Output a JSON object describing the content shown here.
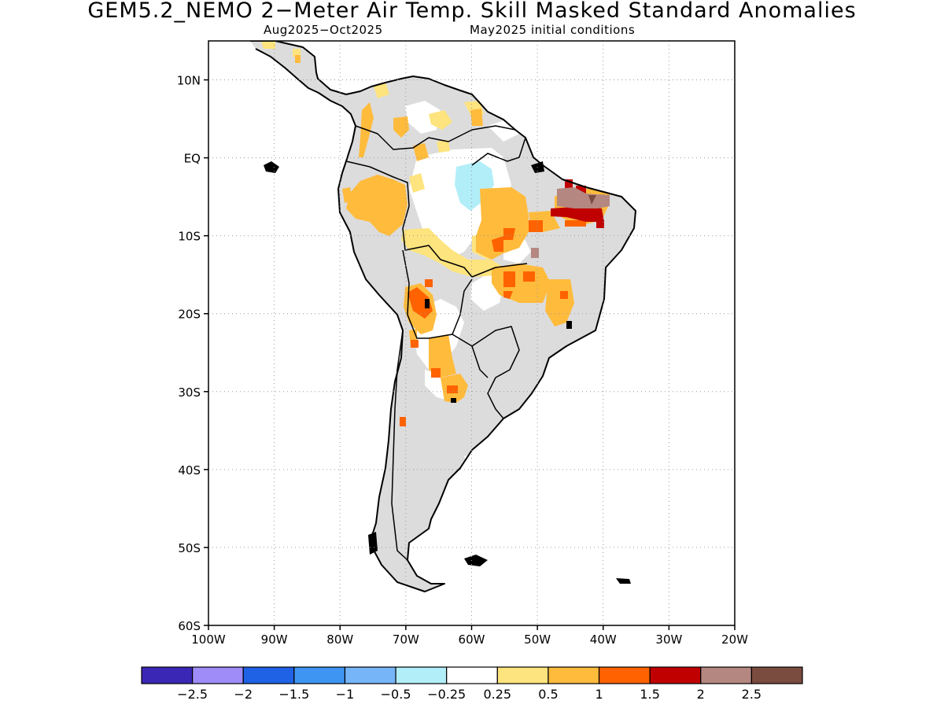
{
  "title": "GEM5.2_NEMO 2−Meter Air Temp. Skill Masked Standard Anomalies",
  "subtitle_left": "Aug2025−Oct2025",
  "subtitle_right": "May2025 initial conditions",
  "map": {
    "lon_range": [
      -100,
      -20
    ],
    "lat_range": [
      -60,
      15
    ],
    "lon_ticks": [
      {
        "value": -100,
        "label": "100W"
      },
      {
        "value": -90,
        "label": "90W"
      },
      {
        "value": -80,
        "label": "80W"
      },
      {
        "value": -70,
        "label": "70W"
      },
      {
        "value": -60,
        "label": "60W"
      },
      {
        "value": -50,
        "label": "50W"
      },
      {
        "value": -40,
        "label": "40W"
      },
      {
        "value": -30,
        "label": "30W"
      },
      {
        "value": -20,
        "label": "20W"
      }
    ],
    "lat_ticks": [
      {
        "value": 10,
        "label": "10N"
      },
      {
        "value": 0,
        "label": "EQ"
      },
      {
        "value": -10,
        "label": "10S"
      },
      {
        "value": -20,
        "label": "20S"
      },
      {
        "value": -30,
        "label": "30S"
      },
      {
        "value": -40,
        "label": "40S"
      },
      {
        "value": -50,
        "label": "50S"
      },
      {
        "value": -60,
        "label": "60S"
      }
    ],
    "grid": true
  },
  "colorbar": {
    "colors": [
      "#3b27b5",
      "#9f8cf8",
      "#1f62e6",
      "#3e96f2",
      "#76b5f8",
      "#b2eef8",
      "#ffffff",
      "#fee47e",
      "#ffbb3c",
      "#ff6200",
      "#c00000",
      "#b48780",
      "#7a4b3f"
    ],
    "labels": [
      "−2.5",
      "−2",
      "−1.5",
      "−1",
      "−0.5",
      "−0.25",
      "0.25",
      "0.5",
      "1",
      "1.5",
      "2",
      "2.5"
    ]
  }
}
